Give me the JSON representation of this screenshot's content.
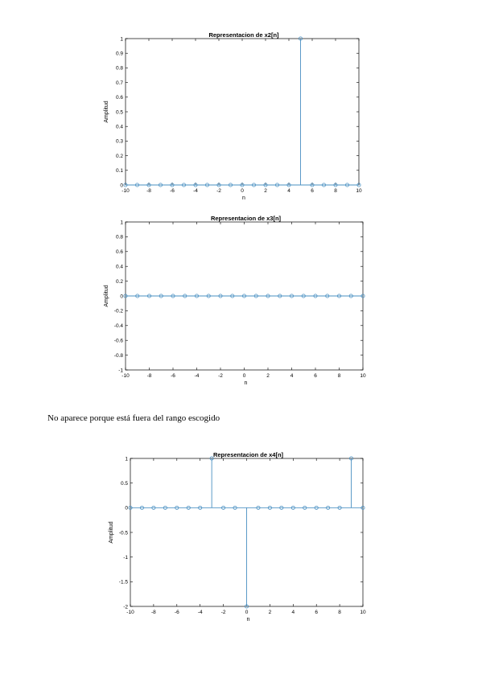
{
  "chart_data": [
    {
      "type": "stem",
      "title": "Representacion de x2[n]",
      "xlabel": "n",
      "ylabel": "Amplitud",
      "xlim": [
        -10,
        10
      ],
      "ylim": [
        0,
        1
      ],
      "xticks": [
        "-10",
        "-8",
        "-6",
        "-4",
        "-2",
        "0",
        "2",
        "4",
        "6",
        "8",
        "10"
      ],
      "yticks": [
        "0",
        "0.1",
        "0.2",
        "0.3",
        "0.4",
        "0.5",
        "0.6",
        "0.7",
        "0.8",
        "0.9",
        "1"
      ],
      "x": [
        -10,
        -9,
        -8,
        -7,
        -6,
        -5,
        -4,
        -3,
        -2,
        -1,
        0,
        1,
        2,
        3,
        4,
        5,
        6,
        7,
        8,
        9,
        10
      ],
      "values": [
        0,
        0,
        0,
        0,
        0,
        0,
        0,
        0,
        0,
        0,
        0,
        0,
        0,
        0,
        0,
        1,
        0,
        0,
        0,
        0,
        0
      ],
      "color": "#4a90c2"
    },
    {
      "type": "stem",
      "title": "Representacion de x3[n]",
      "xlabel": "n",
      "ylabel": "Amplitud",
      "xlim": [
        -10,
        10
      ],
      "ylim": [
        -1,
        1
      ],
      "xticks": [
        "-10",
        "-8",
        "-6",
        "-4",
        "-2",
        "0",
        "2",
        "4",
        "6",
        "8",
        "10"
      ],
      "yticks": [
        "-1",
        "-0.8",
        "-0.6",
        "-0.4",
        "-0.2",
        "0",
        "0.2",
        "0.4",
        "0.6",
        "0.8",
        "1"
      ],
      "x": [
        -10,
        -9,
        -8,
        -7,
        -6,
        -5,
        -4,
        -3,
        -2,
        -1,
        0,
        1,
        2,
        3,
        4,
        5,
        6,
        7,
        8,
        9,
        10
      ],
      "values": [
        0,
        0,
        0,
        0,
        0,
        0,
        0,
        0,
        0,
        0,
        0,
        0,
        0,
        0,
        0,
        0,
        0,
        0,
        0,
        0,
        0
      ],
      "color": "#4a90c2"
    },
    {
      "type": "stem",
      "title": "Representacion de x4[n]",
      "xlabel": "n",
      "ylabel": "Amplitud",
      "xlim": [
        -10,
        10
      ],
      "ylim": [
        -2,
        1
      ],
      "xticks": [
        "-10",
        "-8",
        "-6",
        "-4",
        "-2",
        "0",
        "2",
        "4",
        "6",
        "8",
        "10"
      ],
      "yticks": [
        "-2",
        "-1.5",
        "-1",
        "-0.5",
        "0",
        "0.5",
        "1"
      ],
      "x": [
        -10,
        -9,
        -8,
        -7,
        -6,
        -5,
        -4,
        -3,
        -2,
        -1,
        0,
        1,
        2,
        3,
        4,
        5,
        6,
        7,
        8,
        9,
        10
      ],
      "values": [
        0,
        0,
        0,
        0,
        0,
        0,
        0,
        1,
        0,
        0,
        -2,
        0,
        0,
        0,
        0,
        0,
        0,
        0,
        0,
        1,
        0
      ],
      "color": "#4a90c2"
    }
  ],
  "caption": "No aparece porque está fuera del rango escogido"
}
